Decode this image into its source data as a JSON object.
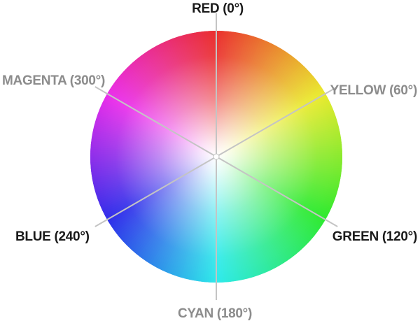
{
  "diagram": {
    "labels": [
      {
        "id": "red",
        "text": "RED (0°)",
        "hue": 0,
        "color": "#1a1a1a"
      },
      {
        "id": "yellow",
        "text": "YELLOW (60°)",
        "hue": 60,
        "color": "#8c8c8c"
      },
      {
        "id": "green",
        "text": "GREEN (120°)",
        "hue": 120,
        "color": "#1a1a1a"
      },
      {
        "id": "cyan",
        "text": "CYAN (180°)",
        "hue": 180,
        "color": "#8c8c8c"
      },
      {
        "id": "blue",
        "text": "BLUE (240°)",
        "hue": 240,
        "color": "#1a1a1a"
      },
      {
        "id": "magenta",
        "text": "MAGENTA (300°)",
        "hue": 300,
        "color": "#8c8c8c"
      }
    ],
    "spoke_color": "#c4c4c4"
  }
}
